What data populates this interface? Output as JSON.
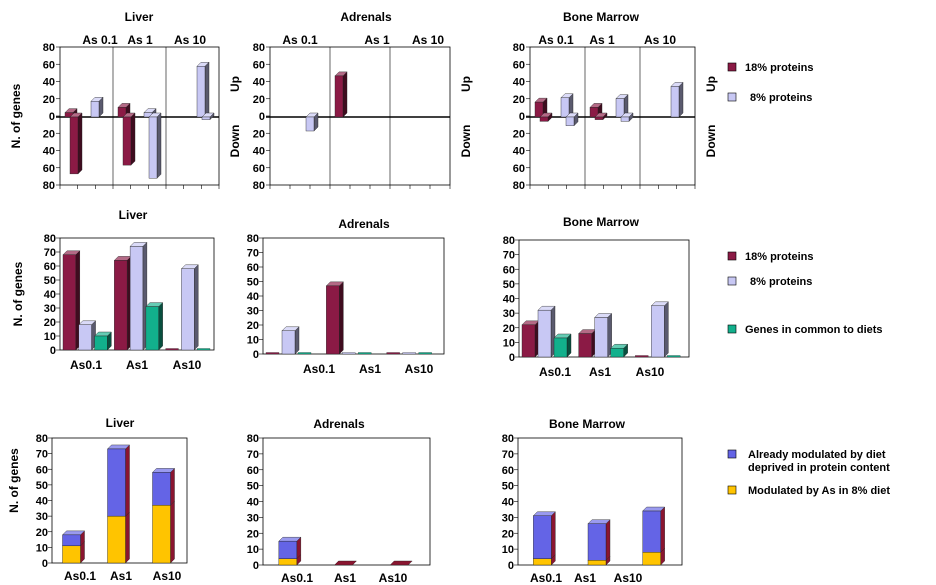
{
  "colors": {
    "p18": "#8b1a45",
    "p8": "#c8c8f4",
    "common": "#12b08c",
    "already": "#6464e6",
    "modulated": "#ffc400",
    "stack_side": "#8a1530"
  },
  "legends": {
    "row1": [
      "18% proteins",
      "8% proteins"
    ],
    "row2": [
      "18% proteins",
      "8% proteins",
      "Genes in common to diets"
    ],
    "row3": [
      "Already modulated by diet deprived in protein content",
      "Modulated by As in 8% diet"
    ]
  },
  "chart_data": [
    {
      "type": "bar",
      "title": "Liver",
      "ylabel": "N. of genes",
      "categories": [
        "As 0.1",
        "As 1",
        "As 10"
      ],
      "up_label": "Up",
      "down_label": "Down",
      "y_ticks": [
        "80",
        "60",
        "40",
        "20",
        "0",
        "20",
        "40",
        "60",
        "80"
      ],
      "ylim": [
        -80,
        80
      ],
      "series": [
        {
          "name": "18% proteins",
          "up": [
            5,
            11,
            0
          ],
          "down": [
            -65,
            -55,
            0
          ]
        },
        {
          "name": "8% proteins",
          "up": [
            18,
            5,
            58
          ],
          "down": [
            0,
            -70,
            -3
          ]
        }
      ]
    },
    {
      "type": "bar",
      "title": "Adrenals",
      "ylabel": "",
      "categories": [
        "As 0.1",
        "As 1",
        "As 10"
      ],
      "up_label": "Up",
      "down_label": "Down",
      "y_ticks": [
        "80",
        "60",
        "40",
        "20",
        "0",
        "20",
        "40",
        "60",
        "80"
      ],
      "ylim": [
        -80,
        80
      ],
      "series": [
        {
          "name": "18% proteins",
          "up": [
            0,
            47,
            0
          ],
          "down": [
            0,
            0,
            0
          ]
        },
        {
          "name": "8% proteins",
          "up": [
            0,
            0,
            0
          ],
          "down": [
            -16,
            0,
            0
          ]
        }
      ]
    },
    {
      "type": "bar",
      "title": "Bone Marrow",
      "ylabel": "",
      "categories": [
        "As 0.1",
        "As 1",
        "As 10"
      ],
      "up_label": "Up",
      "down_label": "Down",
      "y_ticks": [
        "80",
        "60",
        "40",
        "20",
        "0",
        "20",
        "40",
        "60",
        "80"
      ],
      "ylim": [
        -80,
        80
      ],
      "series": [
        {
          "name": "18% proteins",
          "up": [
            17,
            11,
            0
          ],
          "down": [
            -5,
            -3,
            0
          ]
        },
        {
          "name": "8% proteins",
          "up": [
            22,
            21,
            35
          ],
          "down": [
            -10,
            -5,
            0
          ]
        }
      ]
    },
    {
      "type": "bar",
      "title": "Liver",
      "ylabel": "N. of genes",
      "categories": [
        "As0.1",
        "As1",
        "As10"
      ],
      "ylim": [
        0,
        80
      ],
      "y_ticks": [
        "0",
        "10",
        "20",
        "30",
        "40",
        "50",
        "60",
        "70",
        "80"
      ],
      "series": [
        {
          "name": "18% proteins",
          "values": [
            68,
            64,
            0
          ]
        },
        {
          "name": "8% proteins",
          "values": [
            18,
            74,
            58
          ]
        },
        {
          "name": "Genes in common to diets",
          "values": [
            10,
            31,
            0
          ]
        }
      ]
    },
    {
      "type": "bar",
      "title": "Adrenals",
      "ylabel": "",
      "categories": [
        "As0.1",
        "As1",
        "As10"
      ],
      "ylim": [
        0,
        80
      ],
      "y_ticks": [
        "0",
        "10",
        "20",
        "30",
        "40",
        "50",
        "60",
        "70",
        "80"
      ],
      "series": [
        {
          "name": "18% proteins",
          "values": [
            0,
            47,
            0
          ]
        },
        {
          "name": "8% proteins",
          "values": [
            16,
            0,
            0
          ]
        },
        {
          "name": "Genes in common to diets",
          "values": [
            0,
            0,
            0
          ]
        }
      ]
    },
    {
      "type": "bar",
      "title": "Bone Marrow",
      "ylabel": "",
      "categories": [
        "As0.1",
        "As1",
        "As10"
      ],
      "ylim": [
        0,
        80
      ],
      "y_ticks": [
        "0",
        "10",
        "20",
        "30",
        "40",
        "50",
        "60",
        "70",
        "80"
      ],
      "series": [
        {
          "name": "18% proteins",
          "values": [
            22,
            16,
            0
          ]
        },
        {
          "name": "8% proteins",
          "values": [
            32,
            27,
            35
          ]
        },
        {
          "name": "Genes in common to diets",
          "values": [
            13,
            6,
            0
          ]
        }
      ]
    },
    {
      "type": "bar",
      "stacked": true,
      "title": "Liver",
      "ylabel": "N. of genes",
      "categories": [
        "As0.1",
        "As1",
        "As10"
      ],
      "ylim": [
        0,
        80
      ],
      "y_ticks": [
        "0",
        "10",
        "20",
        "30",
        "40",
        "50",
        "60",
        "70",
        "80"
      ],
      "series": [
        {
          "name": "Modulated by As in 8% diet",
          "values": [
            11,
            30,
            37
          ]
        },
        {
          "name": "Already modulated by diet deprived in protein content",
          "values": [
            7,
            43,
            21
          ]
        }
      ]
    },
    {
      "type": "bar",
      "stacked": true,
      "title": "Adrenals",
      "ylabel": "",
      "categories": [
        "As0.1",
        "As1",
        "As10"
      ],
      "ylim": [
        0,
        80
      ],
      "y_ticks": [
        "0",
        "10",
        "20",
        "30",
        "40",
        "50",
        "60",
        "70",
        "80"
      ],
      "series": [
        {
          "name": "Modulated by As in 8% diet",
          "values": [
            4,
            0,
            0
          ]
        },
        {
          "name": "Already modulated by diet deprived in protein content",
          "values": [
            11,
            0,
            0
          ]
        }
      ]
    },
    {
      "type": "bar",
      "stacked": true,
      "title": "Bone Marrow",
      "ylabel": "",
      "categories": [
        "As0.1",
        "As1",
        "As10"
      ],
      "ylim": [
        0,
        80
      ],
      "y_ticks": [
        "0",
        "10",
        "20",
        "30",
        "40",
        "50",
        "60",
        "70",
        "80"
      ],
      "series": [
        {
          "name": "Modulated by As in 8% diet",
          "values": [
            4,
            3,
            8
          ]
        },
        {
          "name": "Already modulated by diet deprived in protein content",
          "values": [
            27,
            23,
            26
          ]
        }
      ]
    }
  ]
}
